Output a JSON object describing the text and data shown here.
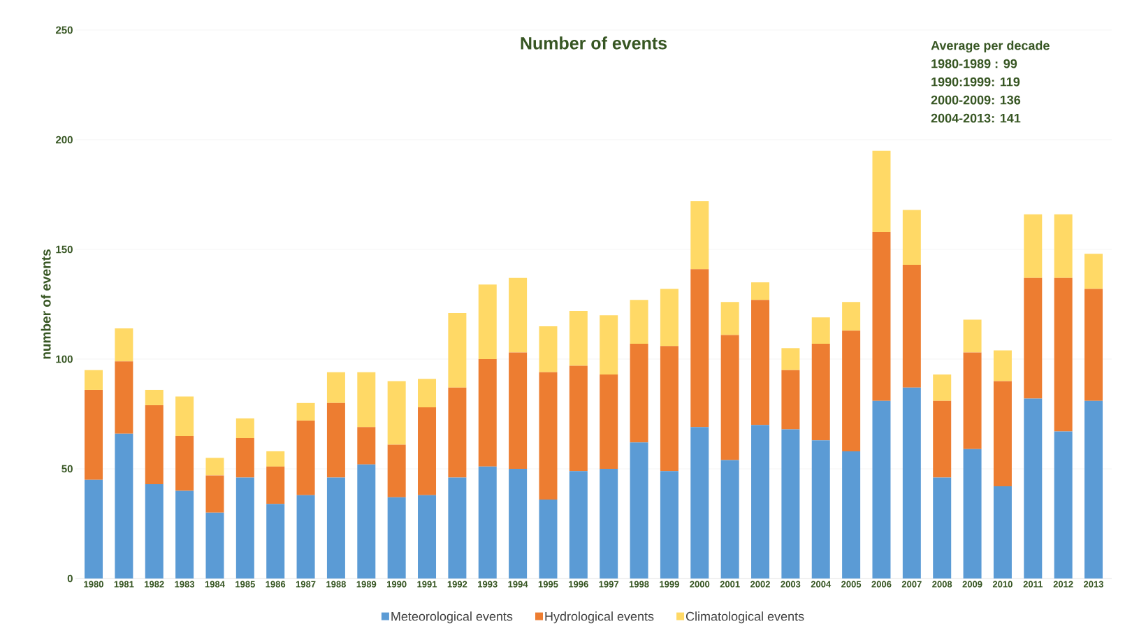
{
  "chart_data": {
    "type": "bar",
    "stacked": true,
    "title": "Number of events",
    "ylabel": "number of events",
    "categories": [
      "1980",
      "1981",
      "1982",
      "1983",
      "1984",
      "1985",
      "1986",
      "1987",
      "1988",
      "1989",
      "1990",
      "1991",
      "1992",
      "1993",
      "1994",
      "1995",
      "1996",
      "1997",
      "1998",
      "1999",
      "2000",
      "2001",
      "2002",
      "2003",
      "2004",
      "2005",
      "2006",
      "2007",
      "2008",
      "2009",
      "2010",
      "2011",
      "2012",
      "2013"
    ],
    "series": [
      {
        "name": "Meteorological events",
        "color": "#5b9bd5",
        "values": [
          45,
          66,
          43,
          40,
          30,
          46,
          34,
          38,
          46,
          52,
          37,
          38,
          46,
          51,
          50,
          36,
          49,
          50,
          62,
          49,
          69,
          54,
          70,
          68,
          63,
          58,
          81,
          87,
          46,
          59,
          42,
          82,
          67,
          81
        ]
      },
      {
        "name": "Hydrological events",
        "color": "#ed7d31",
        "values": [
          41,
          33,
          36,
          25,
          17,
          18,
          17,
          34,
          34,
          17,
          24,
          40,
          41,
          49,
          53,
          58,
          48,
          43,
          45,
          57,
          72,
          57,
          57,
          27,
          44,
          55,
          77,
          56,
          35,
          44,
          48,
          55,
          70,
          51
        ]
      },
      {
        "name": "Climatological events",
        "color": "#ffd966",
        "values": [
          9,
          15,
          7,
          18,
          8,
          9,
          7,
          8,
          14,
          25,
          29,
          13,
          34,
          34,
          34,
          21,
          25,
          27,
          20,
          26,
          31,
          15,
          8,
          10,
          12,
          13,
          37,
          25,
          12,
          15,
          14,
          29,
          29,
          16
        ]
      }
    ],
    "ylim": [
      0,
      250
    ],
    "yticks": [
      0,
      50,
      100,
      150,
      200,
      250
    ],
    "grid": "y",
    "legend": "bottom",
    "annotations": [
      "Average per decade",
      "1980-1989 :  99",
      "1990:1999:   119",
      "2000-2009:   136",
      "2004-2013:   141"
    ]
  }
}
